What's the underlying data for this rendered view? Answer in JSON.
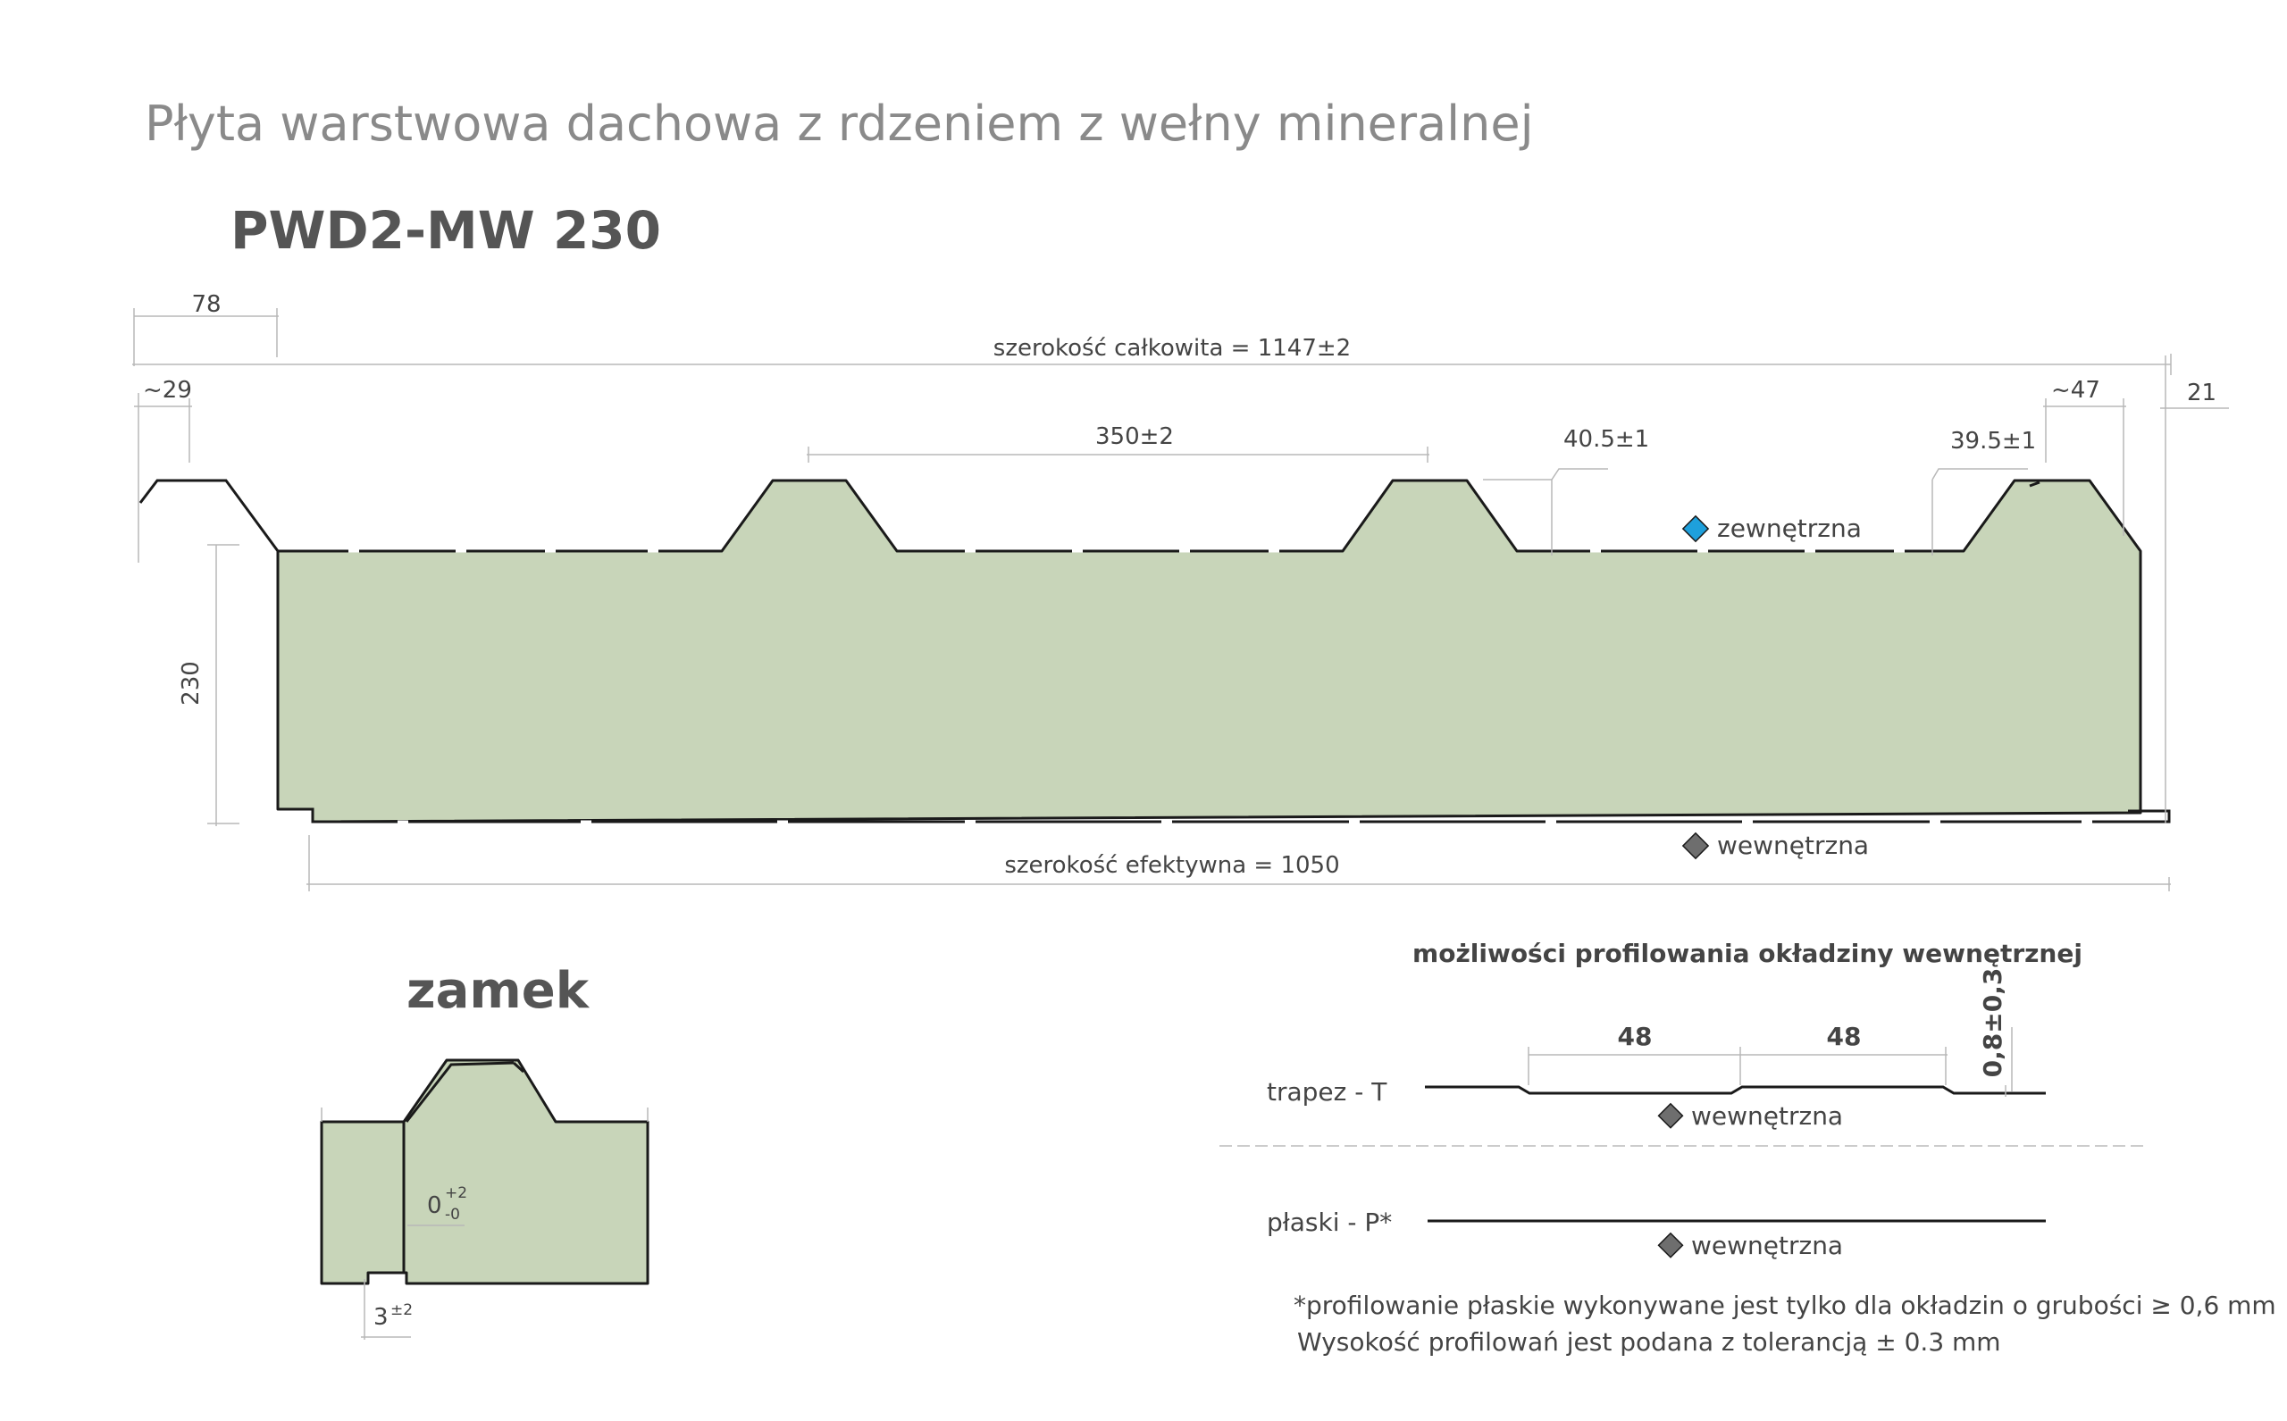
{
  "title": "Płyta warstwowa dachowa z rdzeniem z wełny mineralnej",
  "model": "PWD2-MW 230",
  "dimensions": {
    "d78": "78",
    "d29": "~29",
    "total_width": "szerokość całkowita = 1147±2",
    "d350": "350±2",
    "d40": "40.5±1",
    "d39": "39.5±1",
    "d47": "~47",
    "d21": "21",
    "d230": "230",
    "effective_width": "szerokość efektywna = 1050"
  },
  "legend": {
    "outer": "zewnętrzna",
    "inner": "wewnętrzna",
    "outer_color": "#1ea0dc",
    "inner_color": "#6e6e6e"
  },
  "lock": {
    "title": "zamek",
    "tol_base": "0",
    "tol_plus": "+2",
    "tol_minus": "-0",
    "gap_base": "3",
    "gap_tol": "±2"
  },
  "profiling": {
    "title": "możliwości profilowania okładziny wewnętrznej",
    "trapez_label": "trapez - T",
    "dim_a": "48",
    "dim_b": "48",
    "height": "0,8±0,3",
    "trapez_side": "wewnętrzna",
    "flat_label": "płaski - P*",
    "flat_side": "wewnętrzna"
  },
  "notes": {
    "line1": "*profilowanie płaskie wykonywane jest tylko dla okładzin o grubości ≥ 0,6 mm",
    "line2": "Wysokość profilowań jest podana z tolerancją ± 0.3 mm"
  },
  "colors": {
    "core_fill": "#c8d5b9",
    "outline": "#1a1a1a",
    "dimension_line": "#b8b8b8"
  }
}
